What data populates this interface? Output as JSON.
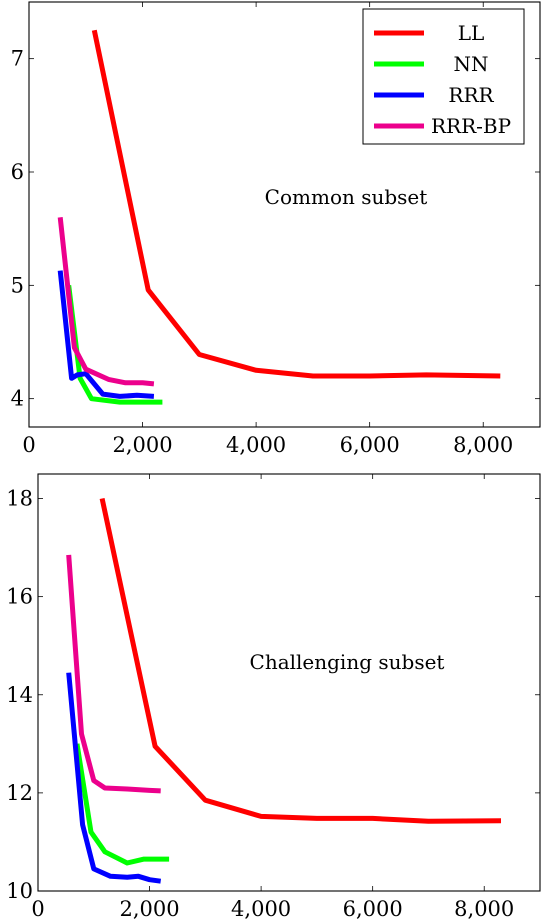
{
  "chart_data": [
    {
      "type": "line",
      "annotation": "Common subset",
      "xlim": [
        0,
        9000
      ],
      "ylim": [
        3.75,
        7.5
      ],
      "xticks": [
        0,
        2000,
        4000,
        6000,
        8000
      ],
      "xtick_labels": [
        "0",
        "2,000",
        "4,000",
        "6,000",
        "8,000"
      ],
      "yticks": [
        4,
        5,
        6,
        7
      ],
      "ytick_labels": [
        "4",
        "5",
        "6",
        "7"
      ],
      "legend_position": "top-right",
      "series": [
        {
          "name": "LL",
          "color": "#ff0000",
          "x": [
            1150,
            2100,
            3000,
            4000,
            5000,
            6000,
            7000,
            8300
          ],
          "y": [
            7.25,
            4.96,
            4.39,
            4.25,
            4.2,
            4.2,
            4.21,
            4.2
          ]
        },
        {
          "name": "NN",
          "color": "#00ff00",
          "x": [
            700,
            900,
            1100,
            1600,
            2000,
            2350
          ],
          "y": [
            5.0,
            4.18,
            4.0,
            3.97,
            3.97,
            3.97
          ]
        },
        {
          "name": "RRR",
          "color": "#0000ff",
          "x": [
            550,
            750,
            850,
            1000,
            1300,
            1600,
            1900,
            2200
          ],
          "y": [
            5.13,
            4.18,
            4.21,
            4.22,
            4.04,
            4.02,
            4.03,
            4.02
          ]
        },
        {
          "name": "RRR-BP",
          "color": "#ec008c",
          "x": [
            550,
            800,
            1000,
            1400,
            1700,
            2000,
            2200
          ],
          "y": [
            5.6,
            4.45,
            4.26,
            4.17,
            4.14,
            4.14,
            4.13
          ]
        }
      ]
    },
    {
      "type": "line",
      "annotation": "Challenging subset",
      "xlim": [
        0,
        9000
      ],
      "ylim": [
        10,
        18.5
      ],
      "xticks": [
        0,
        2000,
        4000,
        6000,
        8000
      ],
      "xtick_labels": [
        "0",
        "2,000",
        "4,000",
        "6,000",
        "8,000"
      ],
      "yticks": [
        10,
        12,
        14,
        16,
        18
      ],
      "ytick_labels": [
        "10",
        "12",
        "14",
        "16",
        "18"
      ],
      "series": [
        {
          "name": "LL",
          "color": "#ff0000",
          "x": [
            1150,
            2100,
            3000,
            4000,
            5000,
            6000,
            7000,
            8300
          ],
          "y": [
            18.0,
            12.95,
            11.85,
            11.52,
            11.48,
            11.48,
            11.42,
            11.43
          ]
        },
        {
          "name": "NN",
          "color": "#00ff00",
          "x": [
            700,
            950,
            1200,
            1600,
            1900,
            2350
          ],
          "y": [
            13.0,
            11.2,
            10.8,
            10.57,
            10.65,
            10.65
          ]
        },
        {
          "name": "RRR",
          "color": "#0000ff",
          "x": [
            550,
            800,
            1000,
            1300,
            1600,
            1800,
            2000,
            2200
          ],
          "y": [
            14.45,
            11.35,
            10.45,
            10.3,
            10.28,
            10.3,
            10.23,
            10.2
          ]
        },
        {
          "name": "RRR-BP",
          "color": "#ec008c",
          "x": [
            550,
            780,
            1000,
            1200,
            1600,
            2000,
            2200
          ],
          "y": [
            16.85,
            13.2,
            12.25,
            12.1,
            12.08,
            12.05,
            12.04
          ]
        }
      ]
    }
  ]
}
